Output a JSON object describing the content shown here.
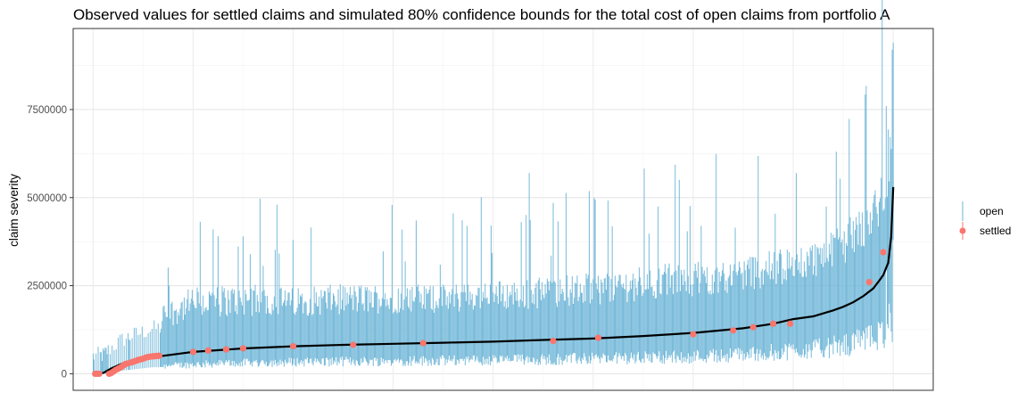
{
  "chart_data": {
    "type": "scatter",
    "title": "Observed values for settled claims and simulated 80% confidence bounds for the total cost of open claims from portfolio A",
    "xlabel": "",
    "ylabel": "claim severity",
    "ylim": [
      -470000,
      9800000
    ],
    "xlim": [
      -20,
      840
    ],
    "yticks": [
      0,
      2500000,
      5000000,
      7500000
    ],
    "ytick_labels": [
      "0",
      "2500000",
      "5000000",
      "7500000"
    ],
    "grid": true,
    "legend_position": "right",
    "n_claims": 800,
    "median_curve": {
      "x": [
        0,
        10,
        18,
        30,
        45,
        58,
        70,
        100,
        150,
        200,
        250,
        300,
        350,
        400,
        450,
        500,
        550,
        600,
        650,
        680,
        700,
        720,
        740,
        750,
        760,
        770,
        780,
        785,
        790,
        795,
        798,
        800
      ],
      "y": [
        0,
        20000,
        150000,
        300000,
        400000,
        480000,
        510000,
        620000,
        720000,
        780000,
        820000,
        850000,
        880000,
        910000,
        960000,
        1000000,
        1070000,
        1160000,
        1290000,
        1420000,
        1550000,
        1630000,
        1800000,
        1900000,
        2030000,
        2200000,
        2420000,
        2600000,
        2800000,
        3150000,
        3900000,
        5300000
      ]
    },
    "interval_upper": {
      "x": [
        70,
        100,
        150,
        200,
        250,
        300,
        350,
        400,
        450,
        500,
        550,
        600,
        650,
        700,
        720,
        740,
        760,
        780,
        790,
        800
      ],
      "y": [
        1900000,
        2300000,
        2400000,
        2300000,
        2400000,
        2400000,
        2400000,
        2500000,
        2600000,
        2700000,
        2900000,
        3000000,
        3200000,
        3400000,
        3600000,
        3900000,
        4300000,
        4900000,
        5800000,
        7500000
      ]
    },
    "series": [
      {
        "name": "open",
        "color": "#69b3d6"
      },
      {
        "name": "settled",
        "color": "#f8766d",
        "x": [
          2,
          4,
          6,
          16,
          18,
          20,
          22,
          24,
          26,
          28,
          30,
          32,
          34,
          38,
          40,
          42,
          44,
          46,
          48,
          50,
          52,
          54,
          56,
          58,
          60,
          62,
          64,
          66,
          100,
          115,
          133,
          150,
          200,
          260,
          330,
          460,
          505,
          600,
          640,
          660,
          680,
          697,
          776,
          790
        ],
        "y": [
          0,
          0,
          0,
          0,
          20000,
          60000,
          100000,
          130000,
          160000,
          190000,
          230000,
          270000,
          290000,
          320000,
          340000,
          360000,
          380000,
          400000,
          410000,
          430000,
          450000,
          470000,
          480000,
          490000,
          495000,
          500000,
          505000,
          510000,
          620000,
          660000,
          690000,
          720000,
          780000,
          820000,
          870000,
          930000,
          1020000,
          1120000,
          1230000,
          1320000,
          1420000,
          1420000,
          2600000,
          3450000
        ]
      }
    ]
  }
}
